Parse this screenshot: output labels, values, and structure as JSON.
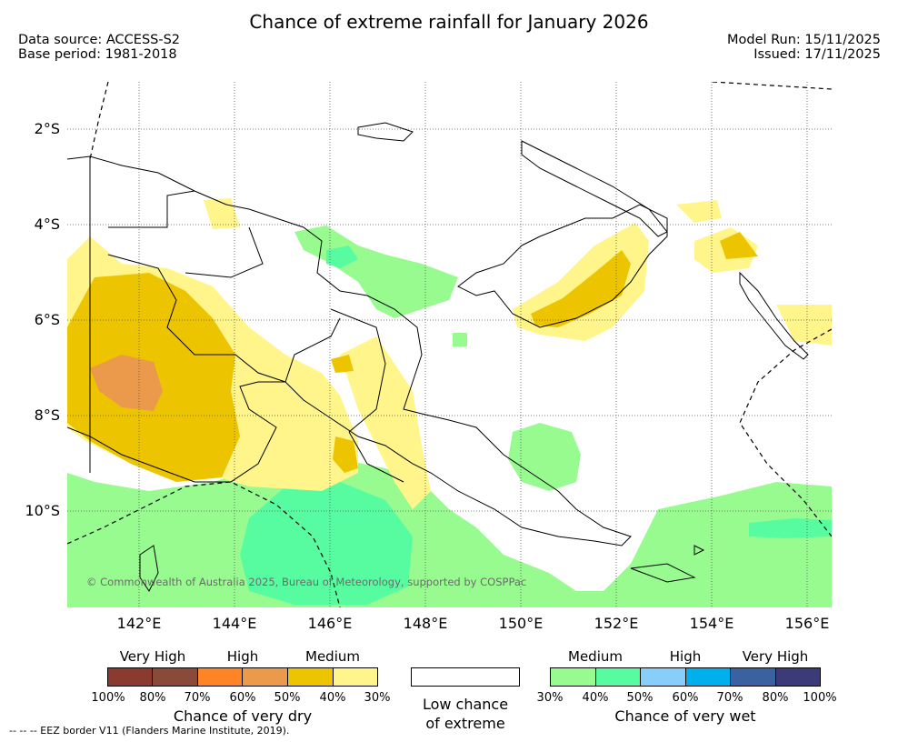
{
  "title": "Chance of extreme rainfall for January 2026",
  "data_source": "Data source: ACCESS-S2",
  "base_period": "Base period: 1981-2018",
  "model_run": "Model Run: 15/11/2025",
  "issued": "Issued: 17/11/2025",
  "lat_labels": [
    "2°S",
    "4°S",
    "6°S",
    "8°S",
    "10°S"
  ],
  "lon_labels": [
    "142°E",
    "144°E",
    "146°E",
    "148°E",
    "150°E",
    "152°E",
    "154°E",
    "156°E"
  ],
  "credit": "© Commonwealth of Australia 2025, Bureau of Meteorology, supported by COSPPac",
  "eez_note": "--  --  -- EEZ border V11 (Flanders Marine Institute, 2019).",
  "legend": {
    "dry": {
      "categories": [
        "Very High",
        "High",
        "Medium"
      ],
      "colors": [
        "#8b3a2f",
        "#8a4a3a",
        "#ff8426",
        "#ea9a4a",
        "#ecc400",
        "#fff58a"
      ],
      "percents": [
        "100%",
        "80%",
        "70%",
        "60%",
        "50%",
        "40%",
        "30%"
      ],
      "caption": "Chance of very dry"
    },
    "low": {
      "caption_line1": "Low chance",
      "caption_line2": "of extreme"
    },
    "wet": {
      "categories": [
        "Medium",
        "High",
        "Very High"
      ],
      "colors": [
        "#98fb90",
        "#58fca0",
        "#87cefa",
        "#00b0ed",
        "#3a62a0",
        "#3d3a7a"
      ],
      "percents": [
        "30%",
        "40%",
        "50%",
        "60%",
        "70%",
        "80%",
        "100%"
      ],
      "caption": "Chance of very wet"
    }
  },
  "map_colors": {
    "very_dry_medium_low": "#fff58a",
    "very_dry_medium_high": "#ecc400",
    "very_dry_high": "#ea9a4a",
    "very_wet_medium_low": "#98fb90",
    "very_wet_medium_high": "#58fca0",
    "coast": "#000000",
    "grid": "#555555"
  }
}
